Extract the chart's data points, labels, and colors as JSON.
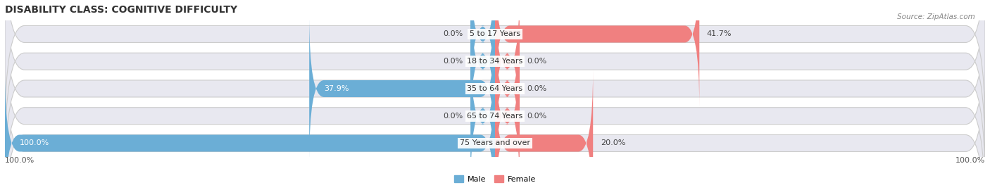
{
  "title": "DISABILITY CLASS: COGNITIVE DIFFICULTY",
  "source": "Source: ZipAtlas.com",
  "categories": [
    "75 Years and over",
    "65 to 74 Years",
    "35 to 64 Years",
    "18 to 34 Years",
    "5 to 17 Years"
  ],
  "male_values": [
    100.0,
    0.0,
    37.9,
    0.0,
    0.0
  ],
  "female_values": [
    20.0,
    0.0,
    0.0,
    0.0,
    41.7
  ],
  "male_color": "#6baed6",
  "female_color": "#f08080",
  "bar_bg_color": "#e8e8f0",
  "bar_height": 0.62,
  "max_value": 100.0,
  "x_left_label": "100.0%",
  "x_right_label": "100.0%",
  "title_fontsize": 10,
  "label_fontsize": 8,
  "tick_fontsize": 8,
  "stub_size": 5.0,
  "label_white_color": "#ffffff",
  "label_dark_color": "#444444"
}
